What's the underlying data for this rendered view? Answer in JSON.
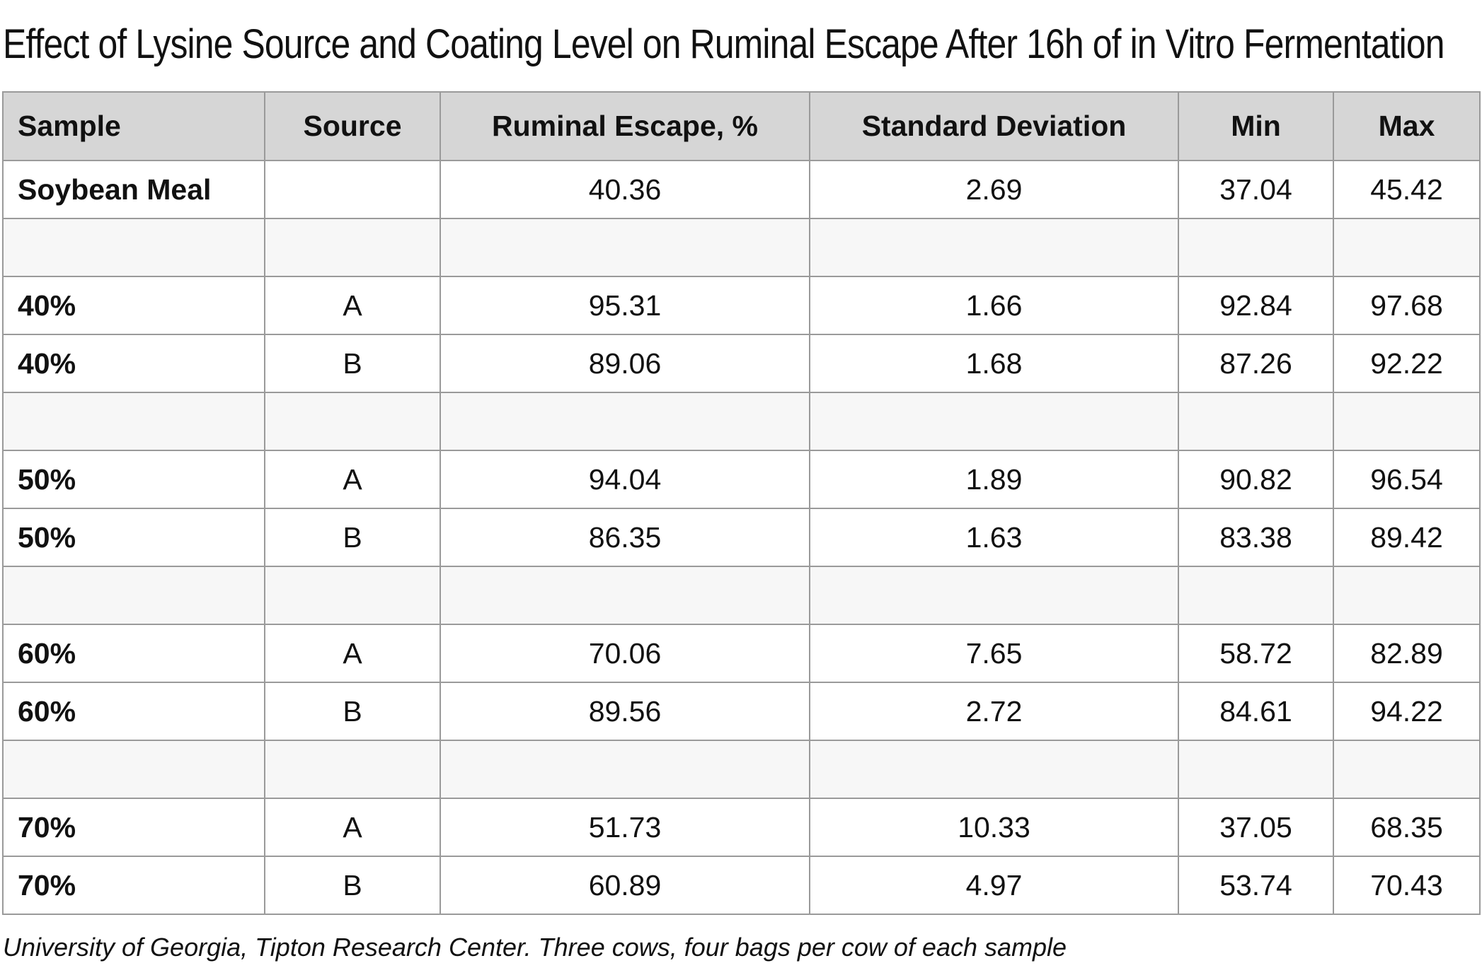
{
  "title": "Effect of Lysine Source and Coating Level on Ruminal Escape After 16h of in Vitro Fermentation",
  "columns": [
    "Sample",
    "Source",
    "Ruminal Escape, %",
    "Standard Deviation",
    "Min",
    "Max"
  ],
  "rows": [
    {
      "sample": "Soybean Meal",
      "source": "",
      "escape": "40.36",
      "sd": "2.69",
      "min": "37.04",
      "max": "45.42"
    },
    {
      "sample": "",
      "source": "",
      "escape": "",
      "sd": "",
      "min": "",
      "max": ""
    },
    {
      "sample": "40%",
      "source": "A",
      "escape": "95.31",
      "sd": "1.66",
      "min": "92.84",
      "max": "97.68"
    },
    {
      "sample": "40%",
      "source": "B",
      "escape": "89.06",
      "sd": "1.68",
      "min": "87.26",
      "max": "92.22"
    },
    {
      "sample": "",
      "source": "",
      "escape": "",
      "sd": "",
      "min": "",
      "max": ""
    },
    {
      "sample": "50%",
      "source": "A",
      "escape": "94.04",
      "sd": "1.89",
      "min": "90.82",
      "max": "96.54"
    },
    {
      "sample": "50%",
      "source": "B",
      "escape": "86.35",
      "sd": "1.63",
      "min": "83.38",
      "max": "89.42"
    },
    {
      "sample": "",
      "source": "",
      "escape": "",
      "sd": "",
      "min": "",
      "max": ""
    },
    {
      "sample": "60%",
      "source": "A",
      "escape": "70.06",
      "sd": "7.65",
      "min": "58.72",
      "max": "82.89"
    },
    {
      "sample": "60%",
      "source": "B",
      "escape": "89.56",
      "sd": "2.72",
      "min": "84.61",
      "max": "94.22"
    },
    {
      "sample": "",
      "source": "",
      "escape": "",
      "sd": "",
      "min": "",
      "max": ""
    },
    {
      "sample": "70%",
      "source": "A",
      "escape": "51.73",
      "sd": "10.33",
      "min": "37.05",
      "max": "68.35"
    },
    {
      "sample": "70%",
      "source": "B",
      "escape": "60.89",
      "sd": "4.97",
      "min": "53.74",
      "max": "70.43"
    }
  ],
  "footnote": "University of Georgia, Tipton Research Center. Three cows, four bags per cow of each sample"
}
